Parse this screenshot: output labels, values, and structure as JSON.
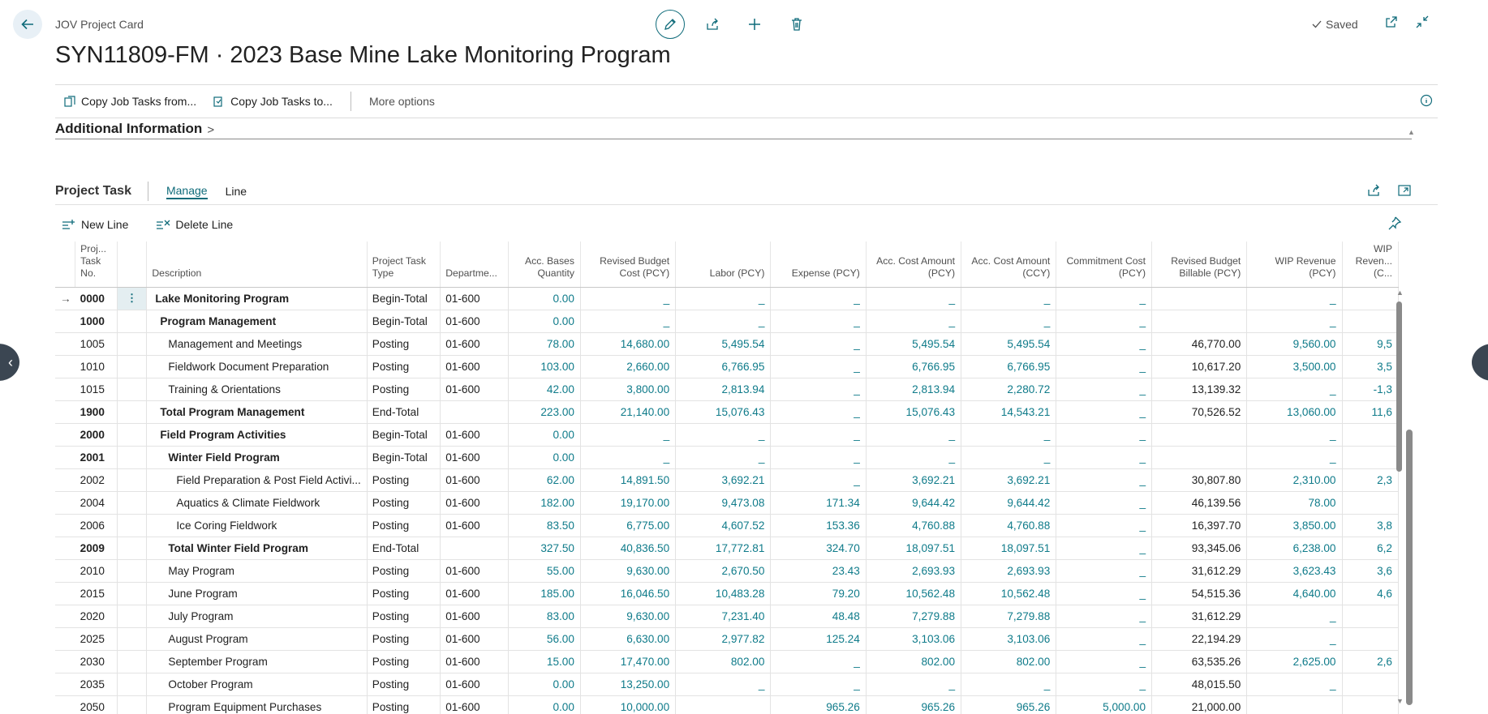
{
  "header": {
    "caption": "JOV Project Card",
    "title": "SYN11809-FM · 2023 Base Mine Lake Monitoring Program",
    "saved_label": "Saved"
  },
  "actionbar": {
    "copy_from_label": "Copy Job Tasks from...",
    "copy_to_label": "Copy Job Tasks to...",
    "more_options_label": "More options"
  },
  "section": {
    "title": "Additional Information"
  },
  "subpage": {
    "title": "Project Task",
    "tabs": [
      {
        "label": "Manage",
        "active": true
      },
      {
        "label": "Line",
        "active": false
      }
    ],
    "new_line_label": "New Line",
    "delete_line_label": "Delete Line"
  },
  "grid": {
    "columns": [
      {
        "label": "Proj... Task No."
      },
      {
        "label": "Description"
      },
      {
        "label": "Project Task Type"
      },
      {
        "label": "Departme..."
      },
      {
        "label": "Acc. Bases Quantity"
      },
      {
        "label": "Revised Budget Cost (PCY)"
      },
      {
        "label": "Labor (PCY)"
      },
      {
        "label": "Expense (PCY)"
      },
      {
        "label": "Acc. Cost Amount (PCY)"
      },
      {
        "label": "Acc. Cost Amount (CCY)"
      },
      {
        "label": "Commitment Cost (PCY)"
      },
      {
        "label": "Revised Budget Billable (PCY)"
      },
      {
        "label": "WIP Revenue (PCY)"
      },
      {
        "label": "WIP Reven... (C..."
      }
    ],
    "rows": [
      {
        "no": "0000",
        "desc": "Lake Monitoring Program",
        "indent": 0,
        "bold": true,
        "selected": true,
        "type": "Begin-Total",
        "dept": "01-600",
        "qty": "0.00",
        "budget": "_",
        "labor": "_",
        "expense": "_",
        "acc_pcy": "_",
        "acc_ccy": "_",
        "commit": "_",
        "billable": "",
        "wip": "_",
        "wip_c": ""
      },
      {
        "no": "1000",
        "desc": "Program Management",
        "indent": 1,
        "bold": true,
        "type": "Begin-Total",
        "dept": "01-600",
        "qty": "0.00",
        "budget": "_",
        "labor": "_",
        "expense": "_",
        "acc_pcy": "_",
        "acc_ccy": "_",
        "commit": "_",
        "billable": "",
        "wip": "_",
        "wip_c": ""
      },
      {
        "no": "1005",
        "desc": "Management and Meetings",
        "indent": 2,
        "bold": false,
        "type": "Posting",
        "dept": "01-600",
        "qty": "78.00",
        "budget": "14,680.00",
        "labor": "5,495.54",
        "expense": "_",
        "acc_pcy": "5,495.54",
        "acc_ccy": "5,495.54",
        "commit": "_",
        "billable": "46,770.00",
        "wip": "9,560.00",
        "wip_c": "9,5"
      },
      {
        "no": "1010",
        "desc": "Fieldwork Document Preparation",
        "indent": 2,
        "bold": false,
        "type": "Posting",
        "dept": "01-600",
        "qty": "103.00",
        "budget": "2,660.00",
        "labor": "6,766.95",
        "expense": "_",
        "acc_pcy": "6,766.95",
        "acc_ccy": "6,766.95",
        "commit": "_",
        "billable": "10,617.20",
        "wip": "3,500.00",
        "wip_c": "3,5"
      },
      {
        "no": "1015",
        "desc": "Training & Orientations",
        "indent": 2,
        "bold": false,
        "type": "Posting",
        "dept": "01-600",
        "qty": "42.00",
        "budget": "3,800.00",
        "labor": "2,813.94",
        "expense": "_",
        "acc_pcy": "2,813.94",
        "acc_ccy": "2,280.72",
        "commit": "_",
        "billable": "13,139.32",
        "wip": "_",
        "wip_c": "-1,3"
      },
      {
        "no": "1900",
        "desc": "Total Program Management",
        "indent": 1,
        "bold": true,
        "type": "End-Total",
        "dept": "",
        "qty": "223.00",
        "budget": "21,140.00",
        "labor": "15,076.43",
        "expense": "_",
        "acc_pcy": "15,076.43",
        "acc_ccy": "14,543.21",
        "commit": "_",
        "billable": "70,526.52",
        "wip": "13,060.00",
        "wip_c": "11,6"
      },
      {
        "no": "2000",
        "desc": "Field Program Activities",
        "indent": 1,
        "bold": true,
        "type": "Begin-Total",
        "dept": "01-600",
        "qty": "0.00",
        "budget": "_",
        "labor": "_",
        "expense": "_",
        "acc_pcy": "_",
        "acc_ccy": "_",
        "commit": "_",
        "billable": "",
        "wip": "_",
        "wip_c": ""
      },
      {
        "no": "2001",
        "desc": "Winter Field Program",
        "indent": 2,
        "bold": true,
        "type": "Begin-Total",
        "dept": "01-600",
        "qty": "0.00",
        "budget": "_",
        "labor": "_",
        "expense": "_",
        "acc_pcy": "_",
        "acc_ccy": "_",
        "commit": "_",
        "billable": "",
        "wip": "_",
        "wip_c": ""
      },
      {
        "no": "2002",
        "desc": "Field Preparation & Post Field Activi...",
        "indent": 3,
        "bold": false,
        "type": "Posting",
        "dept": "01-600",
        "qty": "62.00",
        "budget": "14,891.50",
        "labor": "3,692.21",
        "expense": "_",
        "acc_pcy": "3,692.21",
        "acc_ccy": "3,692.21",
        "commit": "_",
        "billable": "30,807.80",
        "wip": "2,310.00",
        "wip_c": "2,3"
      },
      {
        "no": "2004",
        "desc": "Aquatics & Climate Fieldwork",
        "indent": 3,
        "bold": false,
        "type": "Posting",
        "dept": "01-600",
        "qty": "182.00",
        "budget": "19,170.00",
        "labor": "9,473.08",
        "expense": "171.34",
        "acc_pcy": "9,644.42",
        "acc_ccy": "9,644.42",
        "commit": "_",
        "billable": "46,139.56",
        "wip": "78.00",
        "wip_c": ""
      },
      {
        "no": "2006",
        "desc": "Ice Coring Fieldwork",
        "indent": 3,
        "bold": false,
        "type": "Posting",
        "dept": "01-600",
        "qty": "83.50",
        "budget": "6,775.00",
        "labor": "4,607.52",
        "expense": "153.36",
        "acc_pcy": "4,760.88",
        "acc_ccy": "4,760.88",
        "commit": "_",
        "billable": "16,397.70",
        "wip": "3,850.00",
        "wip_c": "3,8"
      },
      {
        "no": "2009",
        "desc": "Total Winter Field Program",
        "indent": 2,
        "bold": true,
        "type": "End-Total",
        "dept": "",
        "qty": "327.50",
        "budget": "40,836.50",
        "labor": "17,772.81",
        "expense": "324.70",
        "acc_pcy": "18,097.51",
        "acc_ccy": "18,097.51",
        "commit": "_",
        "billable": "93,345.06",
        "wip": "6,238.00",
        "wip_c": "6,2"
      },
      {
        "no": "2010",
        "desc": "May Program",
        "indent": 2,
        "bold": false,
        "type": "Posting",
        "dept": "01-600",
        "qty": "55.00",
        "budget": "9,630.00",
        "labor": "2,670.50",
        "expense": "23.43",
        "acc_pcy": "2,693.93",
        "acc_ccy": "2,693.93",
        "commit": "_",
        "billable": "31,612.29",
        "wip": "3,623.43",
        "wip_c": "3,6"
      },
      {
        "no": "2015",
        "desc": "June Program",
        "indent": 2,
        "bold": false,
        "type": "Posting",
        "dept": "01-600",
        "qty": "185.00",
        "budget": "16,046.50",
        "labor": "10,483.28",
        "expense": "79.20",
        "acc_pcy": "10,562.48",
        "acc_ccy": "10,562.48",
        "commit": "_",
        "billable": "54,515.36",
        "wip": "4,640.00",
        "wip_c": "4,6"
      },
      {
        "no": "2020",
        "desc": "July Program",
        "indent": 2,
        "bold": false,
        "type": "Posting",
        "dept": "01-600",
        "qty": "83.00",
        "budget": "9,630.00",
        "labor": "7,231.40",
        "expense": "48.48",
        "acc_pcy": "7,279.88",
        "acc_ccy": "7,279.88",
        "commit": "_",
        "billable": "31,612.29",
        "wip": "_",
        "wip_c": ""
      },
      {
        "no": "2025",
        "desc": "August Program",
        "indent": 2,
        "bold": false,
        "type": "Posting",
        "dept": "01-600",
        "qty": "56.00",
        "budget": "6,630.00",
        "labor": "2,977.82",
        "expense": "125.24",
        "acc_pcy": "3,103.06",
        "acc_ccy": "3,103.06",
        "commit": "_",
        "billable": "22,194.29",
        "wip": "_",
        "wip_c": ""
      },
      {
        "no": "2030",
        "desc": "September Program",
        "indent": 2,
        "bold": false,
        "type": "Posting",
        "dept": "01-600",
        "qty": "15.00",
        "budget": "17,470.00",
        "labor": "802.00",
        "expense": "_",
        "acc_pcy": "802.00",
        "acc_ccy": "802.00",
        "commit": "_",
        "billable": "63,535.26",
        "wip": "2,625.00",
        "wip_c": "2,6"
      },
      {
        "no": "2035",
        "desc": "October Program",
        "indent": 2,
        "bold": false,
        "type": "Posting",
        "dept": "01-600",
        "qty": "0.00",
        "budget": "13,250.00",
        "labor": "_",
        "expense": "_",
        "acc_pcy": "_",
        "acc_ccy": "_",
        "commit": "_",
        "billable": "48,015.50",
        "wip": "_",
        "wip_c": ""
      },
      {
        "no": "2050",
        "desc": "Program Equipment Purchases",
        "indent": 2,
        "bold": false,
        "type": "Posting",
        "dept": "01-600",
        "qty": "0.00",
        "budget": "10,000.00",
        "labor": "",
        "expense": "965.26",
        "acc_pcy": "965.26",
        "acc_ccy": "965.26",
        "commit": "5,000.00",
        "billable": "21,000.00",
        "wip": "",
        "wip_c": ""
      }
    ]
  },
  "colors": {
    "accent": "#0f6b7a",
    "link_value": "#0f7b8a",
    "edge_handle": "#3b4652"
  }
}
